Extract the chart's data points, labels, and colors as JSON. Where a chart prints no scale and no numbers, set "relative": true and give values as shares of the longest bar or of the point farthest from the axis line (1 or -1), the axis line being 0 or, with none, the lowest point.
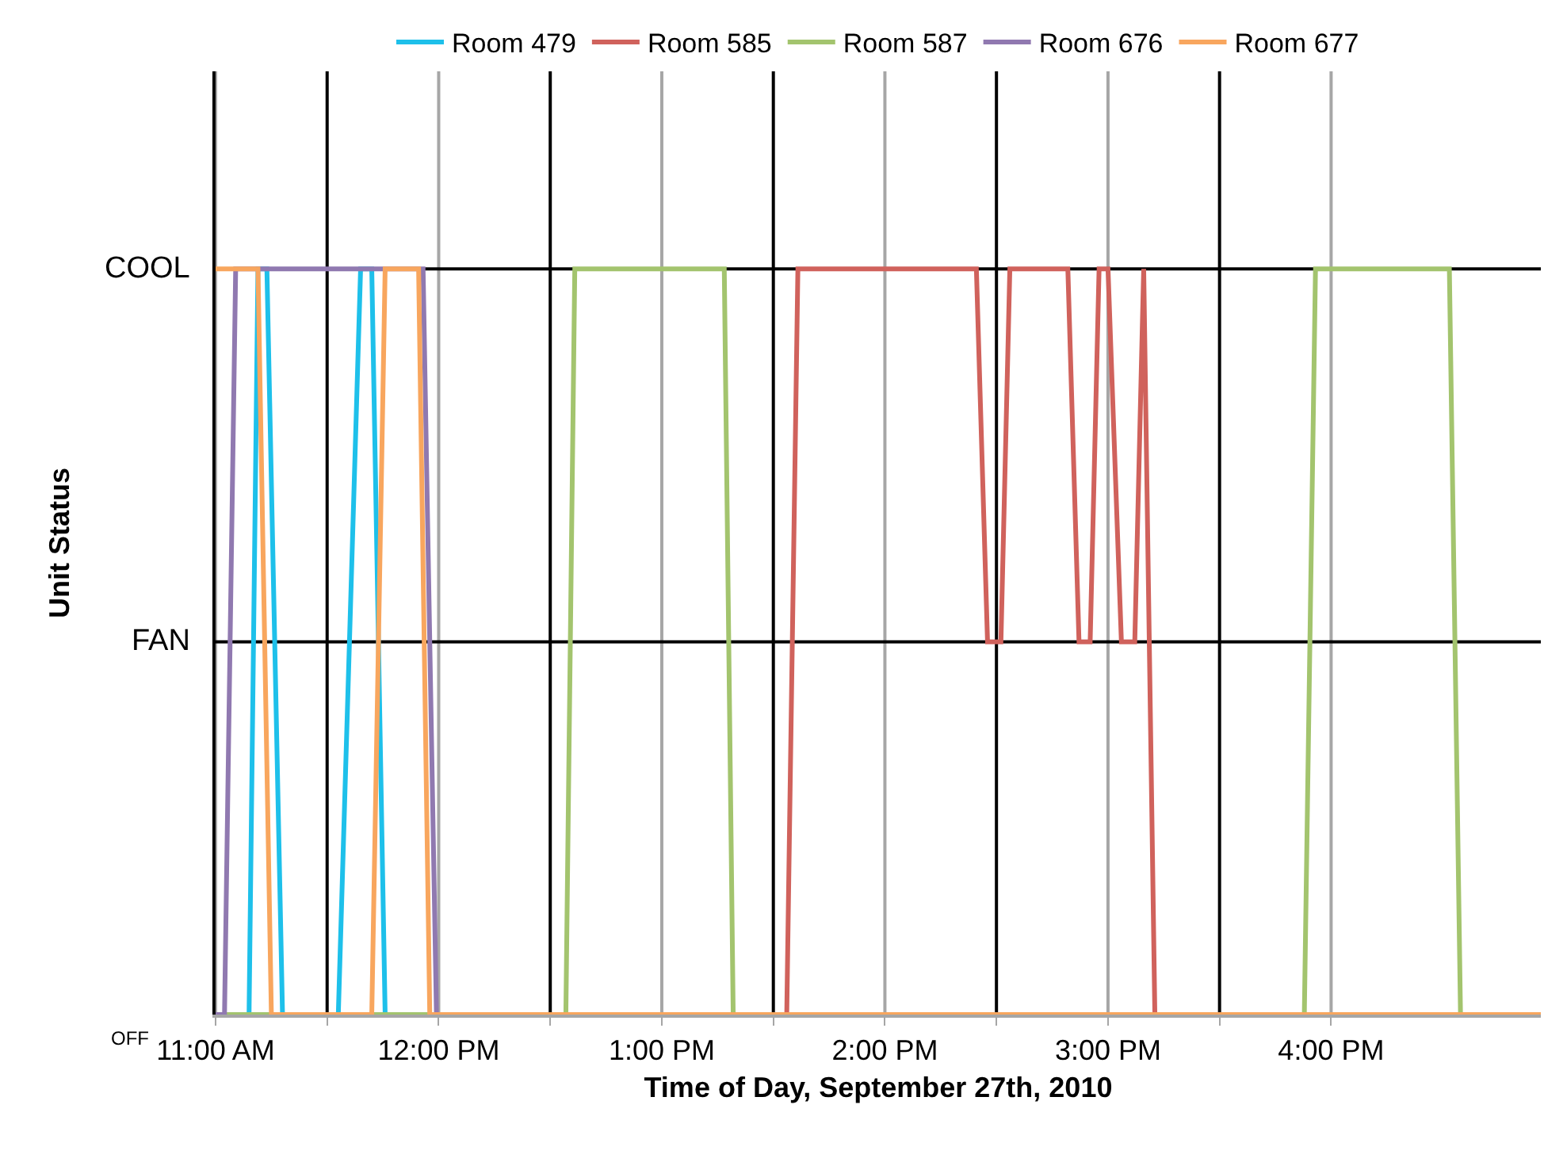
{
  "chart_data": {
    "type": "line",
    "xlabel": "Time of Day, September 27th, 2010",
    "ylabel": "Unit Status",
    "xlim": [
      11,
      16.94
    ],
    "xticks": [
      {
        "value": 11,
        "label": "11:00 AM"
      },
      {
        "value": 11.5,
        "label": null
      },
      {
        "value": 12,
        "label": "12:00 PM"
      },
      {
        "value": 12.5,
        "label": null
      },
      {
        "value": 13,
        "label": "1:00 PM"
      },
      {
        "value": 13.5,
        "label": null
      },
      {
        "value": 14,
        "label": "2:00 PM"
      },
      {
        "value": 14.5,
        "label": null
      },
      {
        "value": 15,
        "label": "3:00 PM"
      },
      {
        "value": 15.5,
        "label": null
      },
      {
        "value": 16,
        "label": "4:00 PM"
      }
    ],
    "relative": true,
    "annotations": [
      "OFF",
      "FAN",
      "COOL"
    ],
    "grid": true,
    "legend": "top",
    "marker": "none",
    "line_style": "solid",
    "series": [
      {
        "name": "Room 479",
        "color": "#1ec0ea",
        "x": [
          11,
          11.15,
          11.19,
          11.23,
          11.3,
          11.55,
          11.65,
          11.7,
          11.76,
          16.94
        ],
        "values": [
          0,
          0,
          1,
          1,
          0,
          0,
          1,
          1,
          0,
          0
        ]
      },
      {
        "name": "Room 585",
        "color": "#d0625c",
        "x": [
          11,
          13.56,
          13.61,
          14.41,
          14.46,
          14.52,
          14.56,
          14.82,
          14.87,
          14.92,
          14.96,
          15.0,
          15.06,
          15.12,
          15.16,
          15.21,
          16.94
        ],
        "values": [
          0,
          0,
          1,
          1,
          0.5,
          0.5,
          1,
          1,
          0.5,
          0.5,
          1,
          1,
          0.5,
          0.5,
          1,
          0,
          0
        ]
      },
      {
        "name": "Room 587",
        "color": "#a3c46e",
        "x": [
          11,
          12.57,
          12.61,
          13.28,
          13.32,
          15.88,
          15.93,
          16.53,
          16.58,
          16.94
        ],
        "values": [
          0,
          0,
          1,
          1,
          0,
          0,
          1,
          1,
          0,
          0
        ]
      },
      {
        "name": "Room 676",
        "color": "#9079b0",
        "x": [
          11,
          11.04,
          11.09,
          11.93,
          11.99,
          16.94
        ],
        "values": [
          0,
          0,
          1,
          1,
          0,
          0
        ]
      },
      {
        "name": "Room 677",
        "color": "#f8a65e",
        "x": [
          11,
          11.19,
          11.25,
          11.7,
          11.76,
          11.91,
          11.96,
          16.94
        ],
        "values": [
          1,
          1,
          0,
          0,
          1,
          1,
          0,
          0
        ]
      }
    ]
  }
}
